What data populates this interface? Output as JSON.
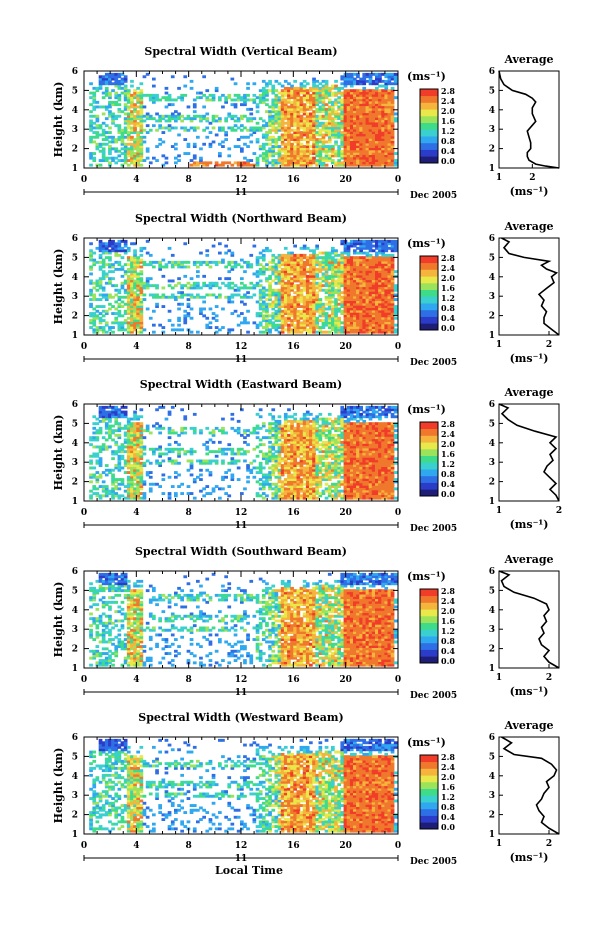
{
  "chart_data": [
    {
      "type": "heatmap",
      "title": "Spectral Width (Vertical Beam)",
      "ylabel": "Height (km)",
      "x_ticks": [
        "0",
        "4",
        "8",
        "12",
        "16",
        "20",
        "0"
      ],
      "xlim": [
        0,
        24
      ],
      "ylim": [
        1,
        6
      ],
      "y_ticks": [
        "1",
        "2",
        "3",
        "4",
        "5",
        "6"
      ],
      "date_day": "11",
      "date_label": "Dec 2005",
      "colorbar_unit": "(ms⁻¹)",
      "colorbar_ticks": [
        "2.8",
        "2.4",
        "2.0",
        "1.6",
        "1.2",
        "0.8",
        "0.4",
        "0.0"
      ],
      "average": {
        "title": "Average",
        "xlabel": "(ms⁻¹)",
        "x_ticks": [
          "1",
          "2"
        ],
        "xlim": [
          1,
          2.8
        ],
        "ylim": [
          1,
          6
        ],
        "y_ticks": [
          "1",
          "2",
          "3",
          "4",
          "5",
          "6"
        ],
        "profile": [
          [
            2.8,
            1.0
          ],
          [
            2.4,
            1.1
          ],
          [
            2.1,
            1.2
          ],
          [
            1.9,
            1.4
          ],
          [
            1.85,
            1.6
          ],
          [
            1.85,
            1.8
          ],
          [
            1.95,
            2.0
          ],
          [
            1.95,
            2.3
          ],
          [
            1.9,
            2.6
          ],
          [
            1.85,
            2.9
          ],
          [
            2.0,
            3.2
          ],
          [
            2.1,
            3.4
          ],
          [
            2.05,
            3.6
          ],
          [
            2.0,
            3.8
          ],
          [
            2.0,
            4.1
          ],
          [
            2.1,
            4.4
          ],
          [
            2.0,
            4.6
          ],
          [
            1.8,
            4.8
          ],
          [
            1.4,
            5.0
          ],
          [
            1.15,
            5.3
          ],
          [
            1.05,
            5.6
          ],
          [
            1.0,
            6.0
          ]
        ]
      }
    },
    {
      "type": "heatmap",
      "title": "Spectral Width (Northward Beam)",
      "ylabel": "Height (km)",
      "x_ticks": [
        "0",
        "4",
        "8",
        "12",
        "16",
        "20",
        "0"
      ],
      "xlim": [
        0,
        24
      ],
      "ylim": [
        1,
        6
      ],
      "y_ticks": [
        "1",
        "2",
        "3",
        "4",
        "5",
        "6"
      ],
      "date_day": "11",
      "date_label": "Dec 2005",
      "colorbar_unit": "(ms⁻¹)",
      "colorbar_ticks": [
        "2.8",
        "2.4",
        "2.0",
        "1.6",
        "1.2",
        "0.8",
        "0.4",
        "0.0"
      ],
      "average": {
        "title": "Average",
        "xlabel": "(ms⁻¹)",
        "x_ticks": [
          "1",
          "2"
        ],
        "xlim": [
          1,
          2.2
        ],
        "ylim": [
          1,
          6
        ],
        "y_ticks": [
          "1",
          "2",
          "3",
          "4",
          "5",
          "6"
        ],
        "profile": [
          [
            2.2,
            1.0
          ],
          [
            2.05,
            1.3
          ],
          [
            1.9,
            1.6
          ],
          [
            1.9,
            1.9
          ],
          [
            1.95,
            2.2
          ],
          [
            1.85,
            2.5
          ],
          [
            1.9,
            2.8
          ],
          [
            1.8,
            3.1
          ],
          [
            1.95,
            3.4
          ],
          [
            2.1,
            3.7
          ],
          [
            2.05,
            4.0
          ],
          [
            2.15,
            4.2
          ],
          [
            1.95,
            4.4
          ],
          [
            1.85,
            4.6
          ],
          [
            2.0,
            4.8
          ],
          [
            1.5,
            5.0
          ],
          [
            1.2,
            5.2
          ],
          [
            1.1,
            5.5
          ],
          [
            1.2,
            5.8
          ],
          [
            1.05,
            6.0
          ]
        ]
      }
    },
    {
      "type": "heatmap",
      "title": "Spectral Width (Eastward Beam)",
      "ylabel": "Height (km)",
      "x_ticks": [
        "0",
        "4",
        "8",
        "12",
        "16",
        "20",
        "0"
      ],
      "xlim": [
        0,
        24
      ],
      "ylim": [
        1,
        6
      ],
      "y_ticks": [
        "1",
        "2",
        "3",
        "4",
        "5",
        "6"
      ],
      "date_day": "11",
      "date_label": "Dec 2005",
      "colorbar_unit": "(ms⁻¹)",
      "colorbar_ticks": [
        "2.8",
        "2.4",
        "2.0",
        "1.6",
        "1.2",
        "0.8",
        "0.4",
        "0.0"
      ],
      "average": {
        "title": "Average",
        "xlabel": "(ms⁻¹)",
        "x_ticks": [
          "1",
          "2"
        ],
        "xlim": [
          1,
          2.0
        ],
        "ylim": [
          1,
          6
        ],
        "y_ticks": [
          "1",
          "2",
          "3",
          "4",
          "5",
          "6"
        ],
        "profile": [
          [
            2.0,
            1.0
          ],
          [
            1.95,
            1.3
          ],
          [
            1.85,
            1.6
          ],
          [
            1.95,
            1.9
          ],
          [
            1.85,
            2.2
          ],
          [
            1.75,
            2.5
          ],
          [
            1.8,
            2.8
          ],
          [
            1.9,
            3.1
          ],
          [
            1.85,
            3.4
          ],
          [
            1.95,
            3.7
          ],
          [
            1.85,
            4.0
          ],
          [
            1.95,
            4.3
          ],
          [
            1.6,
            4.6
          ],
          [
            1.3,
            4.9
          ],
          [
            1.15,
            5.2
          ],
          [
            1.05,
            5.5
          ],
          [
            1.15,
            5.8
          ],
          [
            1.0,
            6.0
          ]
        ]
      }
    },
    {
      "type": "heatmap",
      "title": "Spectral Width (Southward Beam)",
      "ylabel": "Height (km)",
      "x_ticks": [
        "0",
        "4",
        "8",
        "12",
        "16",
        "20",
        "0"
      ],
      "xlim": [
        0,
        24
      ],
      "ylim": [
        1,
        6
      ],
      "y_ticks": [
        "1",
        "2",
        "3",
        "4",
        "5",
        "6"
      ],
      "date_day": "11",
      "date_label": "Dec 2005",
      "colorbar_unit": "(ms⁻¹)",
      "colorbar_ticks": [
        "2.8",
        "2.4",
        "2.0",
        "1.6",
        "1.2",
        "0.8",
        "0.4",
        "0.0"
      ],
      "average": {
        "title": "Average",
        "xlabel": "(ms⁻¹)",
        "x_ticks": [
          "1",
          "2"
        ],
        "xlim": [
          1,
          2.2
        ],
        "ylim": [
          1,
          6
        ],
        "y_ticks": [
          "1",
          "2",
          "3",
          "4",
          "5",
          "6"
        ],
        "profile": [
          [
            2.2,
            1.0
          ],
          [
            2.0,
            1.3
          ],
          [
            1.9,
            1.6
          ],
          [
            2.0,
            1.9
          ],
          [
            1.85,
            2.2
          ],
          [
            1.8,
            2.5
          ],
          [
            1.9,
            2.8
          ],
          [
            1.85,
            3.1
          ],
          [
            1.95,
            3.4
          ],
          [
            1.9,
            3.7
          ],
          [
            2.0,
            4.0
          ],
          [
            1.95,
            4.3
          ],
          [
            1.7,
            4.6
          ],
          [
            1.3,
            4.9
          ],
          [
            1.1,
            5.2
          ],
          [
            1.05,
            5.5
          ],
          [
            1.2,
            5.8
          ],
          [
            1.0,
            6.0
          ]
        ]
      }
    },
    {
      "type": "heatmap",
      "title": "Spectral Width (Westward Beam)",
      "ylabel": "Height (km)",
      "x_ticks": [
        "0",
        "4",
        "8",
        "12",
        "16",
        "20",
        "0"
      ],
      "xlim": [
        0,
        24
      ],
      "ylim": [
        1,
        6
      ],
      "y_ticks": [
        "1",
        "2",
        "3",
        "4",
        "5",
        "6"
      ],
      "date_day": "11",
      "date_label": "Dec 2005",
      "xlabel": "Local Time",
      "colorbar_unit": "(ms⁻¹)",
      "colorbar_ticks": [
        "2.8",
        "2.4",
        "2.0",
        "1.6",
        "1.2",
        "0.8",
        "0.4",
        "0.0"
      ],
      "average": {
        "title": "Average",
        "xlabel": "(ms⁻¹)",
        "x_ticks": [
          "1",
          "2"
        ],
        "xlim": [
          1,
          2.2
        ],
        "ylim": [
          1,
          6
        ],
        "y_ticks": [
          "1",
          "2",
          "3",
          "4",
          "5",
          "6"
        ],
        "profile": [
          [
            2.2,
            1.0
          ],
          [
            2.0,
            1.3
          ],
          [
            1.85,
            1.6
          ],
          [
            1.9,
            1.9
          ],
          [
            1.8,
            2.2
          ],
          [
            1.75,
            2.5
          ],
          [
            1.85,
            2.8
          ],
          [
            1.9,
            3.1
          ],
          [
            2.0,
            3.4
          ],
          [
            1.95,
            3.7
          ],
          [
            2.1,
            4.0
          ],
          [
            2.15,
            4.3
          ],
          [
            2.05,
            4.6
          ],
          [
            1.85,
            4.9
          ],
          [
            1.3,
            5.1
          ],
          [
            1.1,
            5.4
          ],
          [
            1.25,
            5.7
          ],
          [
            1.05,
            6.0
          ]
        ]
      }
    }
  ],
  "colorbar_colors": [
    "#1e1e78",
    "#2b3cc8",
    "#2f6fe6",
    "#2fa8f0",
    "#3ad0d0",
    "#3edc8a",
    "#9be35a",
    "#e8e84a",
    "#f5b43c",
    "#f0782d",
    "#f03c28"
  ]
}
